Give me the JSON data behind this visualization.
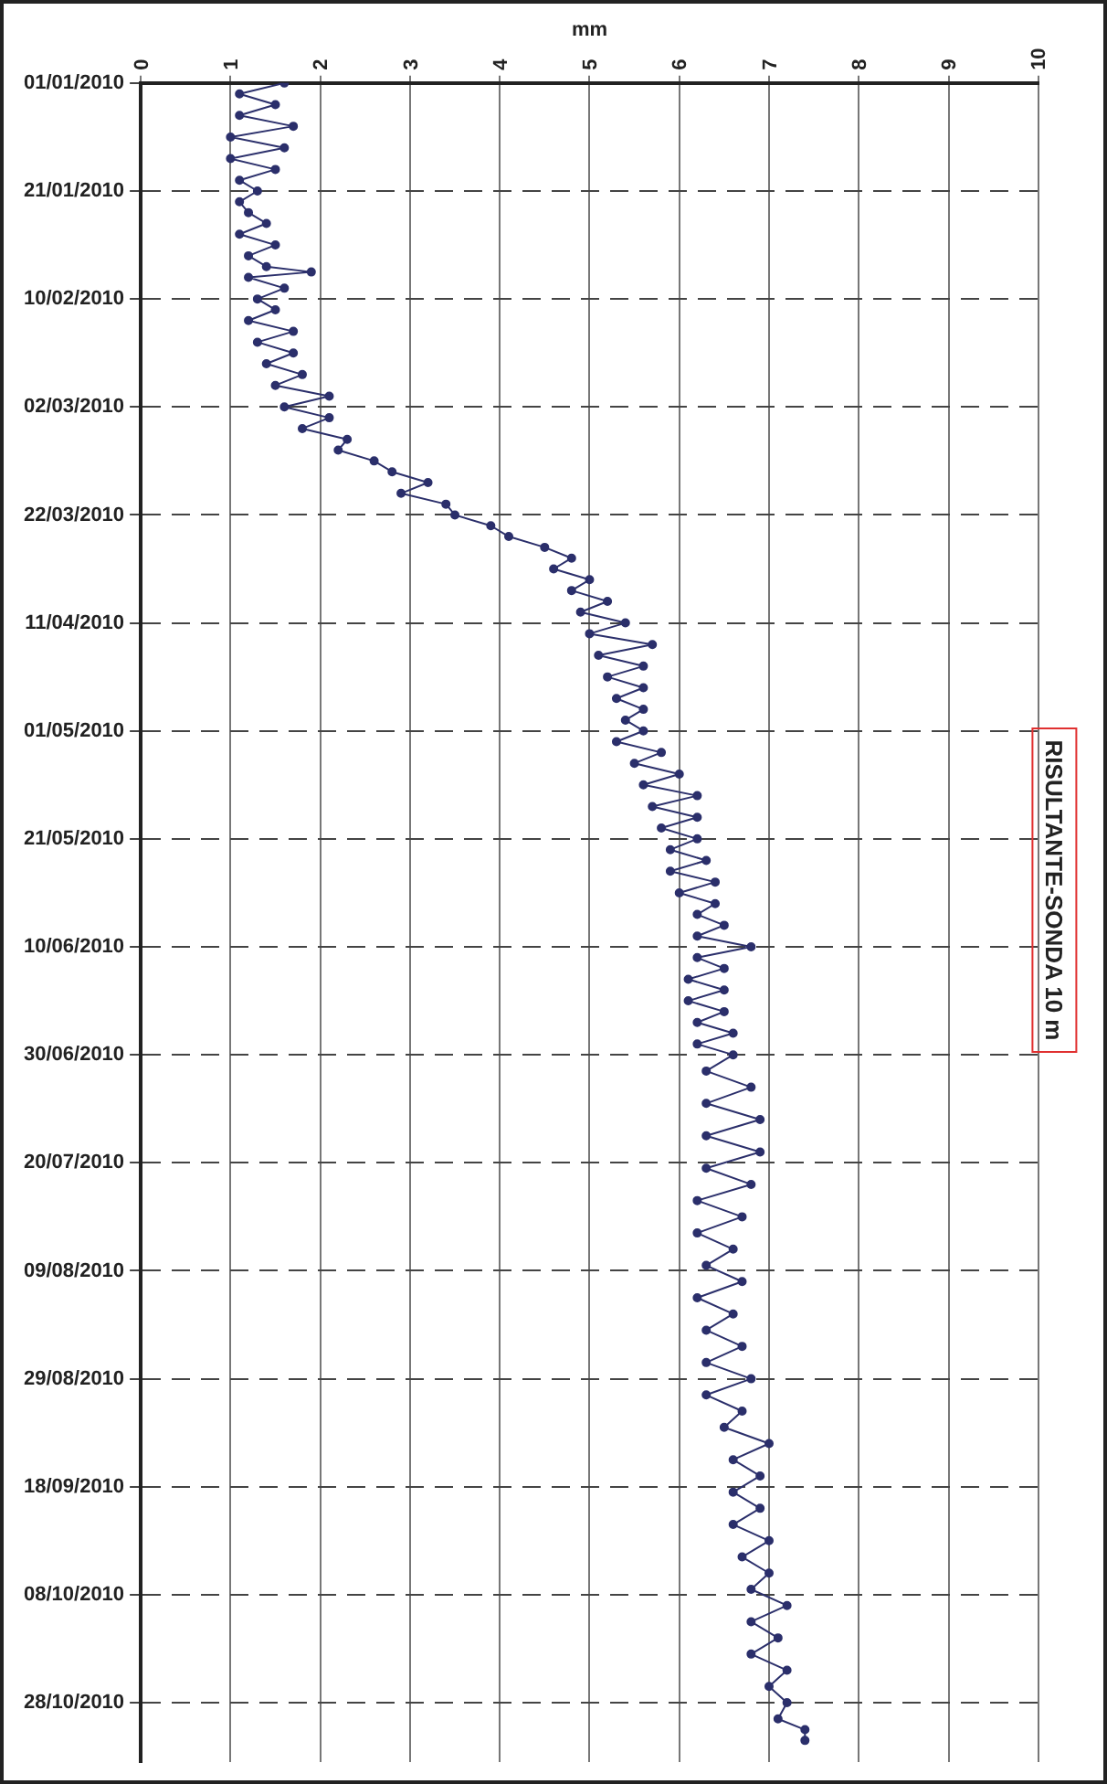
{
  "chart_data": {
    "type": "line",
    "title": "RISULTANTE-SONDA 10 m",
    "xlabel": "mm",
    "orientation": "horizontal",
    "color": "#2b2f6b",
    "marker": "circle",
    "grid": true,
    "xlim": [
      0,
      10
    ],
    "xticks": [
      0,
      1,
      2,
      3,
      4,
      5,
      6,
      7,
      8,
      9,
      10
    ],
    "ylim": [
      "2010-11-08",
      "2010-01-01"
    ],
    "yticks": [
      {
        "value": "2010-01-01",
        "label": "01/01/2010"
      },
      {
        "value": "2010-01-21",
        "label": "21/01/2010"
      },
      {
        "value": "2010-02-10",
        "label": "10/02/2010"
      },
      {
        "value": "2010-03-02",
        "label": "02/03/2010"
      },
      {
        "value": "2010-03-22",
        "label": "22/03/2010"
      },
      {
        "value": "2010-04-11",
        "label": "11/04/2010"
      },
      {
        "value": "2010-05-01",
        "label": "01/05/2010"
      },
      {
        "value": "2010-05-21",
        "label": "21/05/2010"
      },
      {
        "value": "2010-06-10",
        "label": "10/06/2010"
      },
      {
        "value": "2010-06-30",
        "label": "30/06/2010"
      },
      {
        "value": "2010-07-20",
        "label": "20/07/2010"
      },
      {
        "value": "2010-08-09",
        "label": "09/08/2010"
      },
      {
        "value": "2010-08-29",
        "label": "29/08/2010"
      },
      {
        "value": "2010-09-18",
        "label": "18/09/2010"
      },
      {
        "value": "2010-10-08",
        "label": "08/10/2010"
      },
      {
        "value": "2010-10-28",
        "label": "28/10/2010"
      }
    ],
    "x": [
      "2010-01-01",
      "2010-01-03",
      "2010-01-05",
      "2010-01-07",
      "2010-01-09",
      "2010-01-11",
      "2010-01-13",
      "2010-01-15",
      "2010-01-17",
      "2010-01-19",
      "2010-01-21",
      "2010-01-23",
      "2010-01-25",
      "2010-01-27",
      "2010-01-29",
      "2010-01-31",
      "2010-02-02",
      "2010-02-04",
      "2010-02-05",
      "2010-02-06",
      "2010-02-08",
      "2010-02-10",
      "2010-02-12",
      "2010-02-14",
      "2010-02-16",
      "2010-02-18",
      "2010-02-20",
      "2010-02-22",
      "2010-02-24",
      "2010-02-26",
      "2010-02-28",
      "2010-03-02",
      "2010-03-04",
      "2010-03-06",
      "2010-03-08",
      "2010-03-10",
      "2010-03-12",
      "2010-03-14",
      "2010-03-16",
      "2010-03-18",
      "2010-03-20",
      "2010-03-22",
      "2010-03-24",
      "2010-03-26",
      "2010-03-28",
      "2010-03-30",
      "2010-04-01",
      "2010-04-03",
      "2010-04-05",
      "2010-04-07",
      "2010-04-09",
      "2010-04-11",
      "2010-04-13",
      "2010-04-15",
      "2010-04-17",
      "2010-04-19",
      "2010-04-21",
      "2010-04-23",
      "2010-04-25",
      "2010-04-27",
      "2010-04-29",
      "2010-05-01",
      "2010-05-03",
      "2010-05-05",
      "2010-05-07",
      "2010-05-09",
      "2010-05-11",
      "2010-05-13",
      "2010-05-15",
      "2010-05-17",
      "2010-05-19",
      "2010-05-21",
      "2010-05-23",
      "2010-05-25",
      "2010-05-27",
      "2010-05-29",
      "2010-05-31",
      "2010-06-02",
      "2010-06-04",
      "2010-06-06",
      "2010-06-08",
      "2010-06-10",
      "2010-06-12",
      "2010-06-14",
      "2010-06-16",
      "2010-06-18",
      "2010-06-20",
      "2010-06-22",
      "2010-06-24",
      "2010-06-26",
      "2010-06-28",
      "2010-06-30",
      "2010-07-03",
      "2010-07-06",
      "2010-07-09",
      "2010-07-12",
      "2010-07-15",
      "2010-07-18",
      "2010-07-21",
      "2010-07-24",
      "2010-07-27",
      "2010-07-30",
      "2010-08-02",
      "2010-08-05",
      "2010-08-08",
      "2010-08-11",
      "2010-08-14",
      "2010-08-17",
      "2010-08-20",
      "2010-08-23",
      "2010-08-26",
      "2010-08-29",
      "2010-09-01",
      "2010-09-04",
      "2010-09-07",
      "2010-09-10",
      "2010-09-13",
      "2010-09-16",
      "2010-09-19",
      "2010-09-22",
      "2010-09-25",
      "2010-09-28",
      "2010-10-01",
      "2010-10-04",
      "2010-10-07",
      "2010-10-10",
      "2010-10-13",
      "2010-10-16",
      "2010-10-19",
      "2010-10-22",
      "2010-10-25",
      "2010-10-28",
      "2010-10-31",
      "2010-11-02",
      "2010-11-04"
    ],
    "values": [
      1.6,
      1.1,
      1.5,
      1.1,
      1.7,
      1.0,
      1.6,
      1.0,
      1.5,
      1.1,
      1.3,
      1.1,
      1.2,
      1.4,
      1.1,
      1.5,
      1.2,
      1.4,
      1.9,
      1.2,
      1.6,
      1.3,
      1.5,
      1.2,
      1.7,
      1.3,
      1.7,
      1.4,
      1.8,
      1.5,
      2.1,
      1.6,
      2.1,
      1.8,
      2.3,
      2.2,
      2.6,
      2.8,
      3.2,
      2.9,
      3.4,
      3.5,
      3.9,
      4.1,
      4.5,
      4.8,
      4.6,
      5.0,
      4.8,
      5.2,
      4.9,
      5.4,
      5.0,
      5.7,
      5.1,
      5.6,
      5.2,
      5.6,
      5.3,
      5.6,
      5.4,
      5.6,
      5.3,
      5.8,
      5.5,
      6.0,
      5.6,
      6.2,
      5.7,
      6.2,
      5.8,
      6.2,
      5.9,
      6.3,
      5.9,
      6.4,
      6.0,
      6.4,
      6.2,
      6.5,
      6.2,
      6.8,
      6.2,
      6.5,
      6.1,
      6.5,
      6.1,
      6.5,
      6.2,
      6.6,
      6.2,
      6.6,
      6.3,
      6.8,
      6.3,
      6.9,
      6.3,
      6.9,
      6.3,
      6.8,
      6.2,
      6.7,
      6.2,
      6.6,
      6.3,
      6.7,
      6.2,
      6.6,
      6.3,
      6.7,
      6.3,
      6.8,
      6.3,
      6.7,
      6.5,
      7.0,
      6.6,
      6.9,
      6.6,
      6.9,
      6.6,
      7.0,
      6.7,
      7.0,
      6.8,
      7.2,
      6.8,
      7.1,
      6.8,
      7.2,
      7.0,
      7.2,
      7.1,
      7.4,
      7.4
    ]
  }
}
